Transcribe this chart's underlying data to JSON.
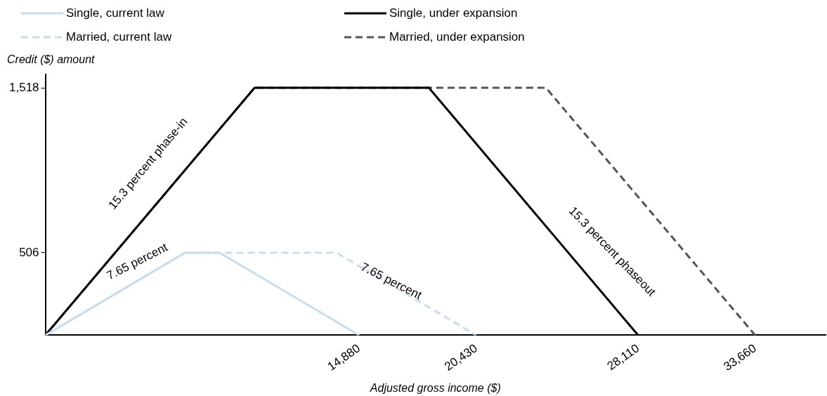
{
  "chart_data": {
    "type": "line",
    "xlabel": "Adjusted gross income ($)",
    "ylabel": "Credit ($) amount",
    "xlim": [
      0,
      37000
    ],
    "xticks": [
      {
        "value": 14880,
        "label": "14,880"
      },
      {
        "value": 20430,
        "label": "20,430"
      },
      {
        "value": 28110,
        "label": "28,110"
      },
      {
        "value": 33660,
        "label": "33,660"
      }
    ],
    "ylim": [
      0,
      1600
    ],
    "yticks": [
      506,
      {
        "value": 1518,
        "label": "1,518"
      }
    ],
    "grid": false,
    "legend": "top",
    "marker": "none",
    "series": [
      {
        "name": "Single, current law",
        "color": "#c5dff0",
        "line_style": "solid",
        "x": [
          0,
          6614,
          8266,
          14880
        ],
        "values": [
          0,
          506,
          506,
          0
        ]
      },
      {
        "name": "Single, under expansion",
        "color": "#000000",
        "line_style": "solid",
        "x": [
          0,
          9922,
          18188,
          28110
        ],
        "values": [
          0,
          1518,
          1518,
          0
        ]
      },
      {
        "name": "Married, current law",
        "color": "#c5dff0",
        "line_style": "dashed",
        "x": [
          0,
          6614,
          13816,
          20430
        ],
        "values": [
          0,
          506,
          506,
          0
        ]
      },
      {
        "name": "Married, under expansion",
        "color": "#555555",
        "line_style": "dashed",
        "x": [
          0,
          9922,
          23738,
          33660
        ],
        "values": [
          0,
          1518,
          1518,
          0
        ]
      }
    ],
    "annotations": [
      "15.3 percent phase-in",
      "7.65 percent",
      "7.65 percent",
      "15.3 percent phaseout"
    ]
  }
}
